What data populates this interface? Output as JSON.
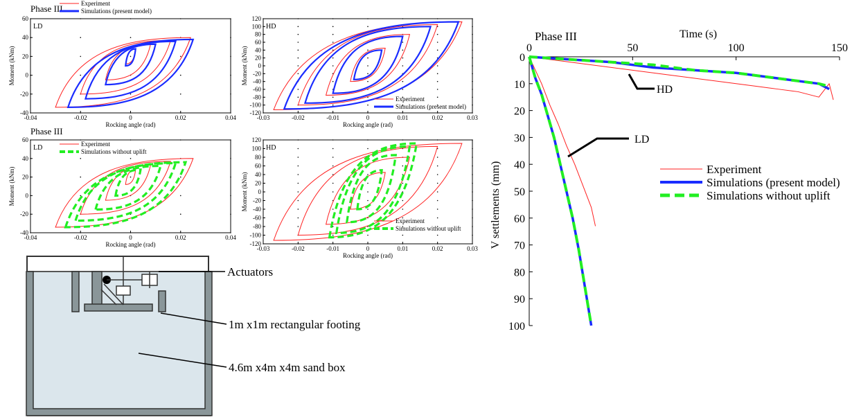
{
  "chart_data": [
    {
      "id": "ll",
      "type": "line",
      "phase_label": "Phase III",
      "corner_label": "LD",
      "xlabel": "Rocking angle (rad)",
      "ylabel": "Moment (kNm)",
      "xlim": [
        -0.04,
        0.04
      ],
      "ylim": [
        -40,
        60
      ],
      "xticks": [
        "-0.04",
        "-0.02",
        "0",
        "0.02",
        "0.04"
      ],
      "yticks": [
        "-40",
        "-20",
        "0",
        "20",
        "40",
        "60"
      ],
      "xtick_values": [
        -0.04,
        -0.02,
        0,
        0.02,
        0.04
      ],
      "ytick_values": [
        -40,
        -20,
        0,
        20,
        40,
        60
      ],
      "legend": [
        "Experiment",
        "Simulations (present model)"
      ],
      "series": [
        {
          "name": "Experiment",
          "color": "#ff2020",
          "cycles": [
            {
              "xmin": -0.002,
              "xmax": 0.002,
              "ymin": 12,
              "ymax": 28
            },
            {
              "xmin": -0.01,
              "xmax": 0.008,
              "ymin": -5,
              "ymax": 33
            },
            {
              "xmin": -0.02,
              "xmax": 0.016,
              "ymin": -20,
              "ymax": 37
            },
            {
              "xmin": -0.03,
              "xmax": 0.024,
              "ymin": -34,
              "ymax": 40
            }
          ]
        },
        {
          "name": "Simulations (present model)",
          "color": "#1a2cff",
          "cycles": [
            {
              "xmin": -0.002,
              "xmax": 0.002,
              "ymin": 10,
              "ymax": 28
            },
            {
              "xmin": -0.01,
              "xmax": 0.01,
              "ymin": -10,
              "ymax": 33
            },
            {
              "xmin": -0.018,
              "xmax": 0.018,
              "ymin": -25,
              "ymax": 36
            },
            {
              "xmin": -0.025,
              "xmax": 0.025,
              "ymin": -34,
              "ymax": 38
            }
          ]
        }
      ]
    },
    {
      "id": "lh",
      "type": "line",
      "corner_label": "HD",
      "xlabel": "Rocking angle (rad)",
      "ylabel": "Moment (kNm)",
      "xlim": [
        -0.03,
        0.03
      ],
      "ylim": [
        -120,
        120
      ],
      "xticks": [
        "-0.03",
        "-0.02",
        "-0.01",
        "0",
        "0.01",
        "0.02",
        "0.03"
      ],
      "yticks": [
        "-120",
        "-100",
        "-80",
        "-60",
        "-40",
        "-20",
        "0",
        "20",
        "40",
        "60",
        "80",
        "100",
        "120"
      ],
      "xtick_values": [
        -0.03,
        -0.02,
        -0.01,
        0,
        0.01,
        0.02,
        0.03
      ],
      "ytick_values": [
        -120,
        -100,
        -80,
        -60,
        -40,
        -20,
        0,
        20,
        40,
        60,
        80,
        100,
        120
      ],
      "legend": [
        "Experiment",
        "Simulations (present model)"
      ],
      "series": [
        {
          "name": "Experiment",
          "color": "#ff2020",
          "cycles": [
            {
              "xmin": -0.005,
              "xmax": 0.005,
              "ymin": -40,
              "ymax": 45
            },
            {
              "xmin": -0.012,
              "xmax": 0.012,
              "ymin": -75,
              "ymax": 80
            },
            {
              "xmin": -0.02,
              "xmax": 0.02,
              "ymin": -100,
              "ymax": 105
            },
            {
              "xmin": -0.027,
              "xmax": 0.027,
              "ymin": -112,
              "ymax": 112
            }
          ]
        },
        {
          "name": "Simulations (present model)",
          "color": "#1a2cff",
          "cycles": [
            {
              "xmin": -0.004,
              "xmax": 0.004,
              "ymin": -35,
              "ymax": 40
            },
            {
              "xmin": -0.01,
              "xmax": 0.01,
              "ymin": -70,
              "ymax": 75
            },
            {
              "xmin": -0.018,
              "xmax": 0.018,
              "ymin": -95,
              "ymax": 100
            },
            {
              "xmin": -0.024,
              "xmax": 0.026,
              "ymin": -110,
              "ymax": 112
            }
          ]
        }
      ]
    },
    {
      "id": "gl",
      "type": "line",
      "phase_label": "Phase III",
      "corner_label": "LD",
      "xlabel": "Rocking angle (rad)",
      "ylabel": "Moment (kNm)",
      "xlim": [
        -0.04,
        0.04
      ],
      "ylim": [
        -40,
        60
      ],
      "xticks": [
        "-0.04",
        "-0.02",
        "0",
        "0.02",
        "0.04"
      ],
      "yticks": [
        "-40",
        "-20",
        "0",
        "20",
        "40",
        "60"
      ],
      "xtick_values": [
        -0.04,
        -0.02,
        0,
        0.02,
        0.04
      ],
      "ytick_values": [
        -40,
        -20,
        0,
        20,
        40,
        60
      ],
      "legend": [
        "Experiment",
        "Simulations without uplift"
      ],
      "series": [
        {
          "name": "Experiment",
          "color": "#ff2020",
          "cycles": [
            {
              "xmin": -0.002,
              "xmax": 0.002,
              "ymin": 12,
              "ymax": 28
            },
            {
              "xmin": -0.01,
              "xmax": 0.008,
              "ymin": -5,
              "ymax": 33
            },
            {
              "xmin": -0.02,
              "xmax": 0.016,
              "ymin": -20,
              "ymax": 37
            },
            {
              "xmin": -0.03,
              "xmax": 0.025,
              "ymin": -34,
              "ymax": 40
            }
          ]
        },
        {
          "name": "Simulations without uplift",
          "color": "#22ee22",
          "cycles": [
            {
              "xmin": -0.006,
              "xmax": 0.004,
              "ymin": 0,
              "ymax": 28
            },
            {
              "xmin": -0.014,
              "xmax": 0.012,
              "ymin": -15,
              "ymax": 32
            },
            {
              "xmin": -0.022,
              "xmax": 0.018,
              "ymin": -27,
              "ymax": 35
            },
            {
              "xmin": -0.026,
              "xmax": 0.022,
              "ymin": -34,
              "ymax": 36
            }
          ]
        }
      ]
    },
    {
      "id": "gh",
      "type": "line",
      "corner_label": "HD",
      "xlabel": "Rocking angle (rad)",
      "ylabel": "Moment (kNm)",
      "xlim": [
        -0.03,
        0.03
      ],
      "ylim": [
        -120,
        120
      ],
      "xticks": [
        "-0.03",
        "-0.02",
        "-0.01",
        "0",
        "0.01",
        "0.02",
        "0.03"
      ],
      "yticks": [
        "-120",
        "-100",
        "-80",
        "-60",
        "-40",
        "-20",
        "0",
        "20",
        "40",
        "60",
        "80",
        "100",
        "120"
      ],
      "xtick_values": [
        -0.03,
        -0.02,
        -0.01,
        0,
        0.01,
        0.02,
        0.03
      ],
      "ytick_values": [
        -120,
        -100,
        -80,
        -60,
        -40,
        -20,
        0,
        20,
        40,
        60,
        80,
        100,
        120
      ],
      "legend": [
        "Experiment",
        "Simulations without uplift"
      ],
      "series": [
        {
          "name": "Experiment",
          "color": "#ff2020",
          "cycles": [
            {
              "xmin": -0.005,
              "xmax": 0.005,
              "ymin": -40,
              "ymax": 45
            },
            {
              "xmin": -0.012,
              "xmax": 0.012,
              "ymin": -75,
              "ymax": 80
            },
            {
              "xmin": -0.02,
              "xmax": 0.02,
              "ymin": -100,
              "ymax": 105
            },
            {
              "xmin": -0.027,
              "xmax": 0.027,
              "ymin": -112,
              "ymax": 112
            }
          ]
        },
        {
          "name": "Simulations without uplift",
          "color": "#22ee22",
          "cycles": [
            {
              "xmin": -0.003,
              "xmax": 0.004,
              "ymin": -40,
              "ymax": 50
            },
            {
              "xmin": -0.006,
              "xmax": 0.008,
              "ymin": -70,
              "ymax": 85
            },
            {
              "xmin": -0.009,
              "xmax": 0.012,
              "ymin": -95,
              "ymax": 105
            },
            {
              "xmin": -0.011,
              "xmax": 0.014,
              "ymin": -105,
              "ymax": 112
            }
          ]
        }
      ]
    },
    {
      "id": "settle",
      "type": "line",
      "phase_label": "Phase III",
      "xlabel": "Time (s)",
      "ylabel": "V settlements (mm)",
      "xlim": [
        0,
        150
      ],
      "ylim": [
        0,
        100
      ],
      "y_inverted": true,
      "x_axis_position": "top",
      "xticks": [
        "0",
        "50",
        "100",
        "150"
      ],
      "yticks": [
        "0",
        "10",
        "20",
        "30",
        "40",
        "50",
        "60",
        "70",
        "80",
        "90",
        "100"
      ],
      "xtick_values": [
        0,
        50,
        100,
        150
      ],
      "ytick_values": [
        0,
        10,
        20,
        30,
        40,
        50,
        60,
        70,
        80,
        90,
        100
      ],
      "annotations": [
        "HD",
        "LD"
      ],
      "legend": [
        "Experiment",
        "Simulations (present model)",
        "Simulations without uplift"
      ],
      "series": [
        {
          "name": "Experiment",
          "case": "HD",
          "color": "#ff2020",
          "x": [
            0,
            10,
            20,
            30,
            40,
            50,
            60,
            70,
            80,
            90,
            100,
            110,
            120,
            130,
            140,
            145,
            147
          ],
          "y": [
            0,
            1,
            2,
            3,
            4,
            5,
            6,
            7,
            8,
            9,
            10,
            11,
            12,
            13,
            15,
            10,
            16
          ]
        },
        {
          "name": "Simulations (present model)",
          "case": "HD",
          "color": "#1a2cff",
          "x": [
            0,
            20,
            40,
            60,
            80,
            100,
            120,
            140,
            145
          ],
          "y": [
            0,
            1,
            2,
            4,
            5,
            6,
            8,
            10,
            12
          ]
        },
        {
          "name": "Simulations without uplift",
          "case": "HD",
          "color": "#22ee22",
          "x": [
            0,
            20,
            40,
            60,
            80,
            100,
            120,
            140,
            145
          ],
          "y": [
            0,
            1,
            2,
            3,
            5,
            6,
            8,
            10,
            11
          ]
        },
        {
          "name": "Experiment",
          "case": "LD",
          "color": "#ff2020",
          "x": [
            0,
            3,
            6,
            10,
            14,
            18,
            22,
            26,
            30,
            32
          ],
          "y": [
            0,
            5,
            10,
            18,
            25,
            33,
            40,
            48,
            56,
            63
          ]
        },
        {
          "name": "Simulations (present model)",
          "case": "LD",
          "color": "#1a2cff",
          "x": [
            0,
            3,
            6,
            9,
            12,
            15,
            18,
            21,
            24,
            27,
            30
          ],
          "y": [
            0,
            8,
            14,
            22,
            30,
            40,
            50,
            60,
            72,
            86,
            100
          ]
        },
        {
          "name": "Simulations without uplift",
          "case": "LD",
          "color": "#22ee22",
          "x": [
            0,
            3,
            6,
            9,
            12,
            15,
            18,
            21,
            24,
            27,
            30
          ],
          "y": [
            0,
            8,
            14,
            22,
            30,
            40,
            50,
            60,
            72,
            86,
            100
          ]
        }
      ]
    }
  ],
  "schematic": {
    "labels": {
      "actuators": "Actuators",
      "footing": "1m x1m rectangular footing",
      "sandbox": "4.6m x4m x4m sand box"
    }
  }
}
